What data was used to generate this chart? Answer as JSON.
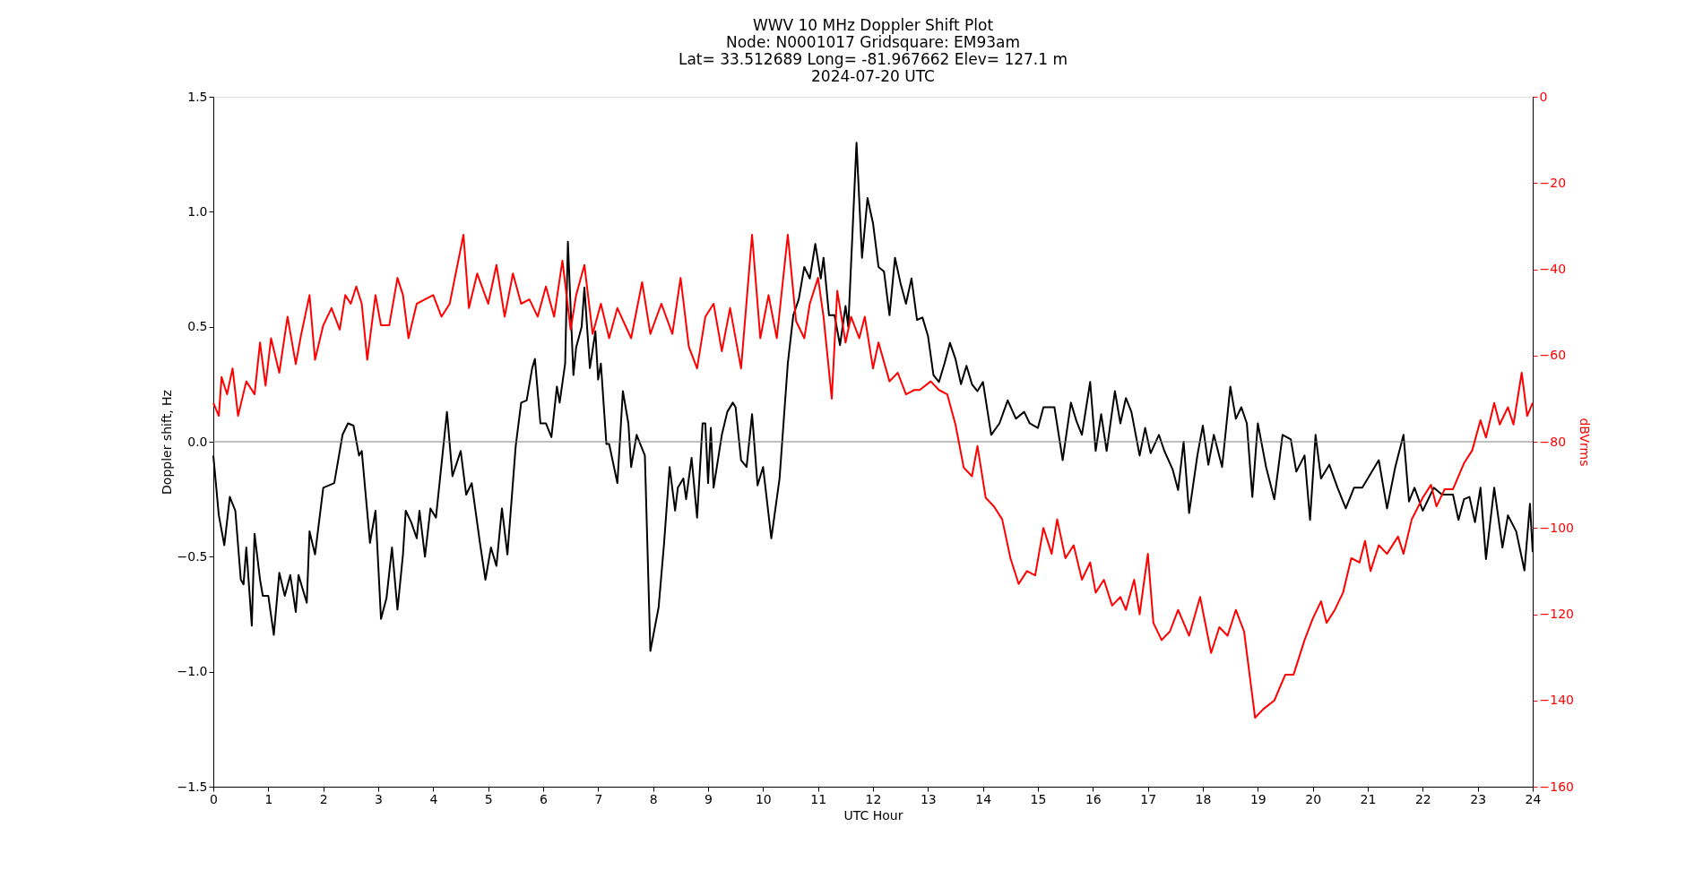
{
  "chart_data": {
    "type": "line",
    "title": "WWV 10 MHz Doppler Shift Plot\nNode:  N0001017     Gridsquare:  EM93am\nLat= 33.512689    Long= -81.967662    Elev= 127.1 m\n2024-07-20  UTC",
    "xlabel": "UTC Hour",
    "ylabel": "Doppler shift, Hz",
    "y2label": "dBVrms",
    "xlim": [
      0,
      24
    ],
    "xticks": [
      0,
      1,
      2,
      3,
      4,
      5,
      6,
      7,
      8,
      9,
      10,
      11,
      12,
      13,
      14,
      15,
      16,
      17,
      18,
      19,
      20,
      21,
      22,
      23,
      24
    ],
    "ylim": [
      -1.5,
      1.5
    ],
    "yticks": [
      {
        "value": -1.5,
        "label": "−1.5"
      },
      {
        "value": -1.0,
        "label": "−1.0"
      },
      {
        "value": -0.5,
        "label": "−0.5"
      },
      {
        "value": 0,
        "label": "0.0"
      },
      {
        "value": 0.5,
        "label": "0.5"
      },
      {
        "value": 1.0,
        "label": "1.0"
      },
      {
        "value": 1.5,
        "label": "1.5"
      }
    ],
    "y2lim": [
      -160,
      0
    ],
    "y2ticks": [
      {
        "value": -160,
        "label": "−160"
      },
      {
        "value": -140,
        "label": "−140"
      },
      {
        "value": -120,
        "label": "−120"
      },
      {
        "value": -100,
        "label": "−100"
      },
      {
        "value": -80,
        "label": "−80"
      },
      {
        "value": -60,
        "label": "−60"
      },
      {
        "value": -40,
        "label": "−40"
      },
      {
        "value": -20,
        "label": "−20"
      },
      0
    ],
    "grid": false,
    "line_style": "solid",
    "marker": "none",
    "ref_lines": [
      {
        "axis": "y",
        "value": 0,
        "color": "#808080"
      }
    ],
    "series": [
      {
        "color": "#000000",
        "axis": "y",
        "x": [
          0,
          0.1,
          0.2,
          0.3,
          0.4,
          0.5,
          0.55,
          0.6,
          0.7,
          0.75,
          0.85,
          0.9,
          1.0,
          1.1,
          1.2,
          1.3,
          1.4,
          1.5,
          1.55,
          1.7,
          1.75,
          1.85,
          2.0,
          2.2,
          2.35,
          2.45,
          2.55,
          2.65,
          2.7,
          2.85,
          2.95,
          3.05,
          3.15,
          3.25,
          3.35,
          3.45,
          3.5,
          3.6,
          3.7,
          3.75,
          3.85,
          3.95,
          4.05,
          4.25,
          4.35,
          4.5,
          4.6,
          4.7,
          4.85,
          4.95,
          5.05,
          5.15,
          5.25,
          5.35,
          5.5,
          5.6,
          5.7,
          5.8,
          5.85,
          5.95,
          6.05,
          6.15,
          6.25,
          6.3,
          6.4,
          6.45,
          6.55,
          6.6,
          6.7,
          6.75,
          6.85,
          6.95,
          7.0,
          7.05,
          7.15,
          7.2,
          7.35,
          7.45,
          7.55,
          7.6,
          7.7,
          7.85,
          7.95,
          8.1,
          8.2,
          8.3,
          8.4,
          8.45,
          8.55,
          8.6,
          8.7,
          8.8,
          8.9,
          8.95,
          9.0,
          9.05,
          9.1,
          9.25,
          9.35,
          9.45,
          9.5,
          9.6,
          9.7,
          9.8,
          9.9,
          10.0,
          10.15,
          10.3,
          10.45,
          10.55,
          10.65,
          10.75,
          10.85,
          10.95,
          11.05,
          11.1,
          11.2,
          11.3,
          11.4,
          11.5,
          11.55,
          11.7,
          11.8,
          11.9,
          12.0,
          12.1,
          12.2,
          12.3,
          12.4,
          12.5,
          12.6,
          12.7,
          12.8,
          12.9,
          13.0,
          13.1,
          13.2,
          13.3,
          13.4,
          13.5,
          13.6,
          13.7,
          13.8,
          13.9,
          14.0,
          14.15,
          14.3,
          14.45,
          14.6,
          14.75,
          14.85,
          15.0,
          15.1,
          15.3,
          15.45,
          15.6,
          15.7,
          15.8,
          15.95,
          16.05,
          16.15,
          16.25,
          16.4,
          16.5,
          16.6,
          16.7,
          16.85,
          16.95,
          17.05,
          17.2,
          17.3,
          17.45,
          17.55,
          17.65,
          17.75,
          17.9,
          18.0,
          18.1,
          18.2,
          18.35,
          18.5,
          18.6,
          18.7,
          18.8,
          18.9,
          19.0,
          19.15,
          19.3,
          19.45,
          19.6,
          19.7,
          19.85,
          19.95,
          20.05,
          20.15,
          20.3,
          20.45,
          20.6,
          20.75,
          20.9,
          21.0,
          21.2,
          21.35,
          21.5,
          21.65,
          21.75,
          21.85,
          22.0,
          22.2,
          22.35,
          22.55,
          22.65,
          22.75,
          22.85,
          22.95,
          23.05,
          23.15,
          23.3,
          23.45,
          23.55,
          23.7,
          23.85,
          23.95,
          24.0
        ],
        "values": [
          -0.06,
          -0.32,
          -0.45,
          -0.24,
          -0.3,
          -0.6,
          -0.62,
          -0.46,
          -0.8,
          -0.4,
          -0.6,
          -0.67,
          -0.67,
          -0.84,
          -0.57,
          -0.67,
          -0.58,
          -0.74,
          -0.58,
          -0.7,
          -0.39,
          -0.49,
          -0.2,
          -0.18,
          0.03,
          0.08,
          0.07,
          -0.06,
          -0.04,
          -0.44,
          -0.3,
          -0.77,
          -0.68,
          -0.46,
          -0.73,
          -0.49,
          -0.3,
          -0.35,
          -0.42,
          -0.3,
          -0.5,
          -0.29,
          -0.33,
          0.13,
          -0.15,
          -0.04,
          -0.23,
          -0.18,
          -0.44,
          -0.6,
          -0.46,
          -0.54,
          -0.29,
          -0.49,
          -0.02,
          0.17,
          0.18,
          0.32,
          0.36,
          0.08,
          0.08,
          0.02,
          0.24,
          0.17,
          0.34,
          0.87,
          0.29,
          0.41,
          0.5,
          0.67,
          0.32,
          0.48,
          0.27,
          0.34,
          -0.01,
          -0.01,
          -0.18,
          0.22,
          0.08,
          -0.11,
          0.03,
          -0.06,
          -0.91,
          -0.72,
          -0.44,
          -0.11,
          -0.3,
          -0.2,
          -0.16,
          -0.25,
          -0.07,
          -0.33,
          0.08,
          0.08,
          -0.18,
          0.06,
          -0.2,
          0.03,
          0.13,
          0.17,
          0.15,
          -0.08,
          -0.11,
          0.12,
          -0.19,
          -0.11,
          -0.42,
          -0.16,
          0.34,
          0.55,
          0.62,
          0.76,
          0.71,
          0.86,
          0.71,
          0.8,
          0.55,
          0.55,
          0.42,
          0.59,
          0.5,
          1.3,
          0.8,
          1.06,
          0.95,
          0.76,
          0.74,
          0.55,
          0.8,
          0.69,
          0.6,
          0.71,
          0.53,
          0.54,
          0.46,
          0.29,
          0.26,
          0.34,
          0.43,
          0.36,
          0.25,
          0.33,
          0.25,
          0.22,
          0.26,
          0.03,
          0.08,
          0.18,
          0.1,
          0.13,
          0.08,
          0.06,
          0.15,
          0.15,
          -0.08,
          0.17,
          0.09,
          0.03,
          0.26,
          -0.04,
          0.12,
          -0.04,
          0.22,
          0.08,
          0.19,
          0.13,
          -0.06,
          0.06,
          -0.05,
          0.03,
          -0.04,
          -0.12,
          -0.21,
          0,
          -0.31,
          -0.06,
          0.07,
          -0.1,
          0.03,
          -0.11,
          0.24,
          0.1,
          0.15,
          0.08,
          -0.24,
          0.08,
          -0.11,
          -0.25,
          0.03,
          0.01,
          -0.13,
          -0.06,
          -0.34,
          0.03,
          -0.16,
          -0.1,
          -0.2,
          -0.29,
          -0.2,
          -0.2,
          -0.16,
          -0.08,
          -0.29,
          -0.11,
          0.03,
          -0.26,
          -0.2,
          -0.3,
          -0.2,
          -0.23,
          -0.23,
          -0.34,
          -0.25,
          -0.24,
          -0.35,
          -0.2,
          -0.51,
          -0.2,
          -0.46,
          -0.32,
          -0.39,
          -0.56,
          -0.27,
          -0.48
        ]
      },
      {
        "color": "#ff0000",
        "axis": "y2",
        "x": [
          0,
          0.1,
          0.15,
          0.25,
          0.35,
          0.45,
          0.6,
          0.75,
          0.85,
          0.95,
          1.05,
          1.2,
          1.35,
          1.5,
          1.6,
          1.75,
          1.85,
          2.0,
          2.15,
          2.3,
          2.4,
          2.5,
          2.6,
          2.7,
          2.8,
          2.95,
          3.05,
          3.2,
          3.35,
          3.45,
          3.55,
          3.7,
          3.85,
          4.0,
          4.15,
          4.3,
          4.55,
          4.65,
          4.8,
          5.0,
          5.15,
          5.3,
          5.45,
          5.6,
          5.75,
          5.9,
          6.05,
          6.2,
          6.35,
          6.5,
          6.6,
          6.75,
          6.9,
          7.05,
          7.2,
          7.35,
          7.6,
          7.8,
          7.95,
          8.15,
          8.35,
          8.5,
          8.65,
          8.8,
          8.95,
          9.1,
          9.25,
          9.4,
          9.6,
          9.8,
          9.95,
          10.1,
          10.25,
          10.45,
          10.6,
          10.75,
          10.85,
          11.0,
          11.1,
          11.25,
          11.35,
          11.5,
          11.6,
          11.75,
          11.85,
          12.0,
          12.1,
          12.3,
          12.45,
          12.6,
          12.75,
          12.85,
          13.05,
          13.2,
          13.35,
          13.5,
          13.65,
          13.8,
          13.9,
          14.05,
          14.2,
          14.35,
          14.5,
          14.65,
          14.8,
          14.95,
          15.1,
          15.25,
          15.35,
          15.5,
          15.65,
          15.8,
          15.95,
          16.05,
          16.2,
          16.35,
          16.5,
          16.6,
          16.75,
          16.85,
          17.0,
          17.1,
          17.25,
          17.4,
          17.55,
          17.75,
          17.95,
          18.15,
          18.3,
          18.45,
          18.6,
          18.75,
          18.95,
          19.1,
          19.3,
          19.5,
          19.65,
          19.85,
          20.0,
          20.15,
          20.25,
          20.4,
          20.55,
          20.7,
          20.85,
          20.95,
          21.05,
          21.2,
          21.35,
          21.55,
          21.65,
          21.8,
          22.0,
          22.15,
          22.25,
          22.4,
          22.55,
          22.75,
          22.9,
          23.05,
          23.15,
          23.3,
          23.4,
          23.55,
          23.65,
          23.8,
          23.9,
          24.0
        ],
        "values": [
          -71,
          -74,
          -65,
          -69,
          -63,
          -74,
          -66,
          -69,
          -57,
          -67,
          -56,
          -64,
          -51,
          -62,
          -55,
          -46,
          -61,
          -53,
          -49,
          -54,
          -46,
          -48,
          -44,
          -48,
          -61,
          -46,
          -53,
          -53,
          -42,
          -46,
          -56,
          -48,
          -47,
          -46,
          -51,
          -48,
          -32,
          -49,
          -41,
          -48,
          -39,
          -51,
          -41,
          -48,
          -47,
          -51,
          -44,
          -51,
          -38,
          -54,
          -46,
          -39,
          -55,
          -48,
          -56,
          -49,
          -56,
          -43,
          -55,
          -48,
          -55,
          -42,
          -58,
          -63,
          -51,
          -48,
          -59,
          -49,
          -63,
          -32,
          -56,
          -46,
          -56,
          -32,
          -52,
          -56,
          -48,
          -42,
          -51,
          -70,
          -45,
          -57,
          -51,
          -56,
          -51,
          -63,
          -57,
          -66,
          -64,
          -69,
          -68,
          -68,
          -66,
          -68,
          -69,
          -76,
          -86,
          -88,
          -81,
          -93,
          -95,
          -98,
          -107,
          -113,
          -110,
          -111,
          -100,
          -106,
          -98,
          -107,
          -104,
          -112,
          -108,
          -115,
          -112,
          -118,
          -116,
          -119,
          -112,
          -120,
          -106,
          -122,
          -126,
          -124,
          -119,
          -125,
          -116,
          -129,
          -123,
          -125,
          -119,
          -124,
          -144,
          -142,
          -140,
          -134,
          -134,
          -126,
          -121,
          -117,
          -122,
          -119,
          -115,
          -107,
          -108,
          -103,
          -110,
          -104,
          -106,
          -102,
          -106,
          -98,
          -93,
          -90,
          -95,
          -91,
          -91,
          -85,
          -82,
          -75,
          -79,
          -71,
          -76,
          -72,
          -76,
          -64,
          -74,
          -71
        ]
      }
    ]
  }
}
